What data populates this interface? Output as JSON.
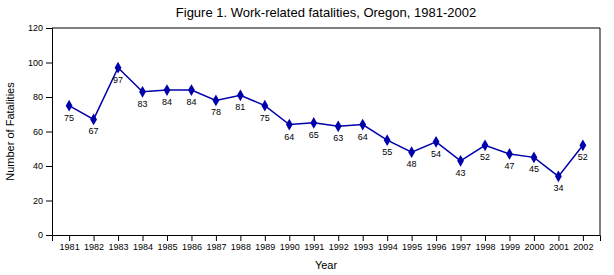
{
  "chart_data": {
    "type": "line",
    "title": "Figure 1. Work-related fatalities, Oregon, 1981-2002",
    "xlabel": "Year",
    "ylabel": "Number of Fatalities",
    "x": [
      1981,
      1982,
      1983,
      1984,
      1985,
      1986,
      1987,
      1988,
      1989,
      1990,
      1991,
      1992,
      1993,
      1994,
      1995,
      1996,
      1997,
      1998,
      1999,
      2000,
      2001,
      2002
    ],
    "values": [
      75,
      67,
      97,
      83,
      84,
      84,
      78,
      81,
      75,
      64,
      65,
      63,
      64,
      55,
      48,
      54,
      43,
      52,
      47,
      45,
      34,
      52
    ],
    "color": "#0000AA",
    "marker": "diamond",
    "data_labels": true,
    "grid": false,
    "xlim": [
      1980.3,
      2002.7
    ],
    "xticks": [
      1981,
      1982,
      1983,
      1984,
      1985,
      1986,
      1987,
      1988,
      1989,
      1990,
      1991,
      1992,
      1993,
      1994,
      1995,
      1996,
      1997,
      1998,
      1999,
      2000,
      2001,
      2002
    ],
    "ylim": [
      0,
      120
    ],
    "yticks": [
      0,
      20,
      40,
      60,
      80,
      100,
      120
    ]
  }
}
